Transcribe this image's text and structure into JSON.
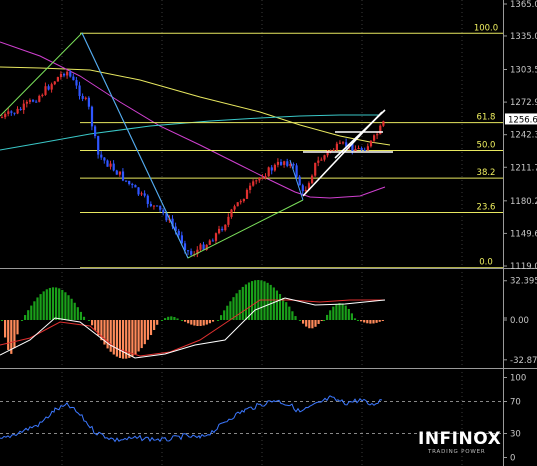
{
  "brand": {
    "name": "INFINOX",
    "tagline": "TRADING POWER"
  },
  "current_price_label": "1256.6",
  "chart_data": [
    {
      "type": "candlestick",
      "panel": "price",
      "ylim": [
        1117,
        1368
      ],
      "y_ticks": [
        {
          "value": 1365.0,
          "label": "1365.0"
        },
        {
          "value": 1335.0,
          "label": "1335.0"
        },
        {
          "value": 1303.5,
          "label": "1303.5"
        },
        {
          "value": 1272.9,
          "label": "1272.9"
        },
        {
          "value": 1242.3,
          "label": "1242.3"
        },
        {
          "value": 1211.7,
          "label": "1211.7"
        },
        {
          "value": 1180.2,
          "label": "1180.2"
        },
        {
          "value": 1149.6,
          "label": "1149.6"
        },
        {
          "value": 1119.0,
          "label": "1119.0"
        }
      ],
      "fibonacci_levels": [
        {
          "label": "100.0",
          "price": 1337.5
        },
        {
          "label": "61.8",
          "price": 1253.6
        },
        {
          "label": "50.0",
          "price": 1227.5
        },
        {
          "label": "38.2",
          "price": 1201.5
        },
        {
          "label": "23.6",
          "price": 1169.2
        },
        {
          "label": "0.0",
          "price": 1117.4
        }
      ],
      "current_price": 1256.6,
      "colors": {
        "up": "#e03030",
        "down": "#2f56ff",
        "fib": "#e8e860"
      }
    },
    {
      "type": "histogram",
      "panel": "macd",
      "ylim": [
        -32.87,
        32.395
      ],
      "y_ticks": [
        {
          "value": 32.395,
          "label": "32.395"
        },
        {
          "value": 0,
          "label": "0.00"
        },
        {
          "value": -32.87,
          "label": "-32.87"
        }
      ],
      "colors": {
        "positive": "#1aa01a",
        "negative": "#ff8a5a"
      }
    },
    {
      "type": "line",
      "panel": "rsi",
      "ylim": [
        0,
        100
      ],
      "y_ticks": [
        {
          "value": 100,
          "label": "100"
        },
        {
          "value": 70,
          "label": "70"
        },
        {
          "value": 30,
          "label": "30"
        },
        {
          "value": 0,
          "label": "0"
        }
      ],
      "colors": {
        "line": "#3c78ff"
      }
    }
  ]
}
